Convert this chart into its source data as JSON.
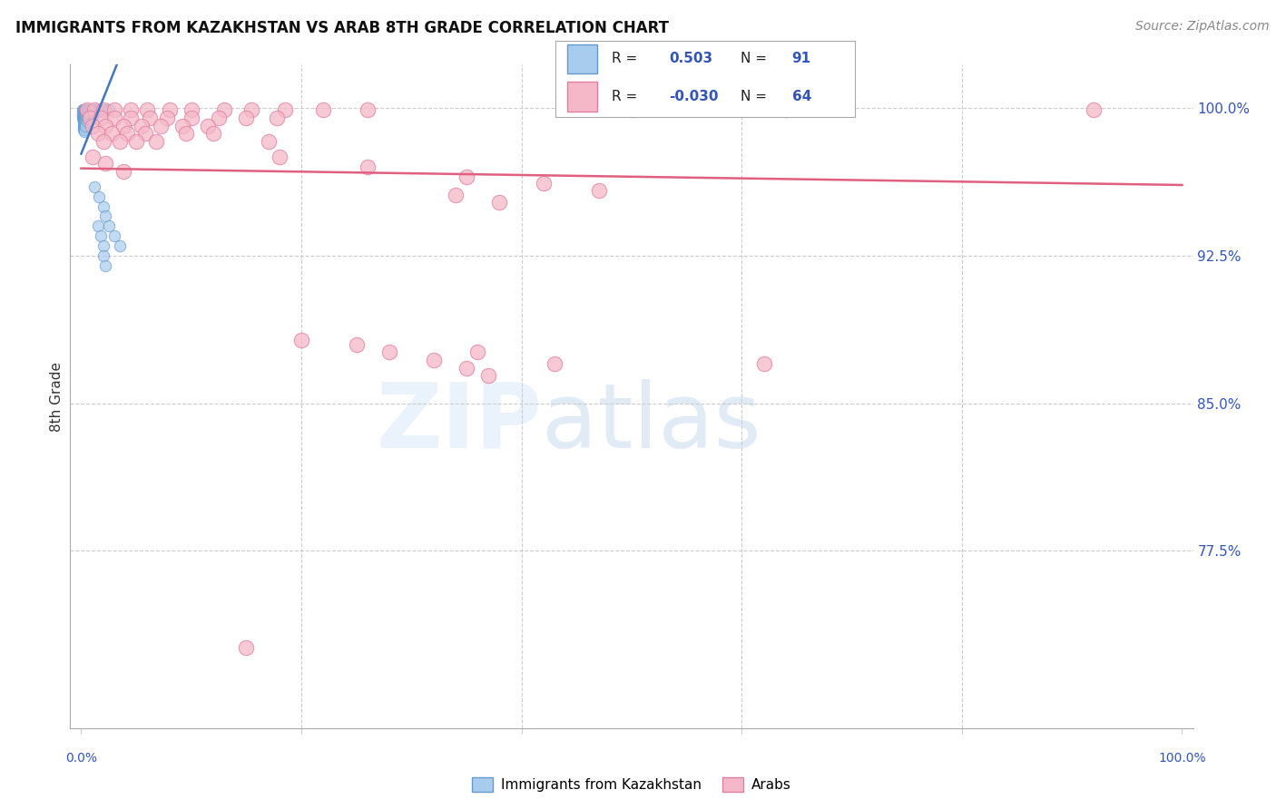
{
  "title": "IMMIGRANTS FROM KAZAKHSTAN VS ARAB 8TH GRADE CORRELATION CHART",
  "source": "Source: ZipAtlas.com",
  "ylabel": "8th Grade",
  "y_tick_labels": [
    "100.0%",
    "92.5%",
    "85.0%",
    "77.5%"
  ],
  "y_tick_values": [
    1.0,
    0.925,
    0.85,
    0.775
  ],
  "y_min": 0.685,
  "y_max": 1.022,
  "x_min": -0.01,
  "x_max": 1.01,
  "r_kaz": 0.503,
  "n_kaz": 91,
  "r_arab": -0.03,
  "n_arab": 64,
  "blue_face": "#A8CCED",
  "blue_edge": "#6699CC",
  "pink_face": "#F5B8C8",
  "pink_edge": "#E080A0",
  "trendline_pink": "#E06080",
  "trendline_blue": "#4477BB",
  "grid_color": "#CCCCCC",
  "tick_color": "#3355BB",
  "blue_scatter_x": [
    0.001,
    0.001,
    0.001,
    0.001,
    0.001,
    0.002,
    0.002,
    0.002,
    0.002,
    0.002,
    0.002,
    0.002,
    0.002,
    0.002,
    0.002,
    0.002,
    0.003,
    0.003,
    0.003,
    0.003,
    0.003,
    0.003,
    0.003,
    0.003,
    0.003,
    0.003,
    0.003,
    0.003,
    0.004,
    0.004,
    0.004,
    0.004,
    0.004,
    0.004,
    0.004,
    0.004,
    0.004,
    0.005,
    0.005,
    0.005,
    0.005,
    0.005,
    0.005,
    0.005,
    0.006,
    0.006,
    0.006,
    0.006,
    0.006,
    0.007,
    0.007,
    0.007,
    0.007,
    0.007,
    0.008,
    0.008,
    0.008,
    0.008,
    0.009,
    0.009,
    0.009,
    0.01,
    0.01,
    0.01,
    0.011,
    0.011,
    0.011,
    0.012,
    0.012,
    0.012,
    0.013,
    0.013,
    0.014,
    0.015,
    0.016,
    0.018,
    0.02,
    0.022,
    0.025,
    0.015,
    0.018,
    0.02,
    0.012,
    0.016,
    0.02,
    0.022,
    0.025,
    0.03,
    0.035,
    0.02,
    0.022
  ],
  "blue_scatter_y": [
    0.999,
    0.998,
    0.997,
    0.996,
    0.995,
    0.999,
    0.998,
    0.997,
    0.996,
    0.995,
    0.994,
    0.993,
    0.992,
    0.991,
    0.99,
    0.989,
    0.999,
    0.998,
    0.997,
    0.996,
    0.995,
    0.994,
    0.993,
    0.992,
    0.991,
    0.99,
    0.989,
    0.988,
    0.999,
    0.998,
    0.997,
    0.996,
    0.995,
    0.994,
    0.993,
    0.992,
    0.991,
    0.999,
    0.998,
    0.997,
    0.996,
    0.995,
    0.994,
    0.993,
    0.999,
    0.998,
    0.997,
    0.996,
    0.995,
    0.999,
    0.998,
    0.997,
    0.996,
    0.995,
    0.999,
    0.998,
    0.997,
    0.996,
    0.999,
    0.998,
    0.997,
    0.999,
    0.998,
    0.997,
    0.999,
    0.998,
    0.997,
    0.999,
    0.998,
    0.997,
    0.999,
    0.998,
    0.999,
    0.999,
    0.999,
    0.999,
    0.999,
    0.999,
    0.999,
    0.94,
    0.935,
    0.93,
    0.96,
    0.955,
    0.95,
    0.945,
    0.94,
    0.935,
    0.93,
    0.925,
    0.92
  ],
  "pink_scatter_x": [
    0.005,
    0.012,
    0.02,
    0.03,
    0.045,
    0.06,
    0.08,
    0.1,
    0.13,
    0.155,
    0.185,
    0.22,
    0.26,
    0.008,
    0.018,
    0.03,
    0.045,
    0.062,
    0.078,
    0.1,
    0.125,
    0.15,
    0.178,
    0.01,
    0.022,
    0.038,
    0.055,
    0.072,
    0.092,
    0.115,
    0.015,
    0.028,
    0.042,
    0.058,
    0.095,
    0.12,
    0.02,
    0.035,
    0.05,
    0.068,
    0.17,
    0.01,
    0.022,
    0.038,
    0.18,
    0.26,
    0.35,
    0.42,
    0.47,
    0.5,
    0.64,
    0.92,
    0.38,
    0.34,
    0.2,
    0.28,
    0.32,
    0.35,
    0.37,
    0.62,
    0.15,
    0.25,
    0.36,
    0.43
  ],
  "pink_scatter_y": [
    0.999,
    0.999,
    0.999,
    0.999,
    0.999,
    0.999,
    0.999,
    0.999,
    0.999,
    0.999,
    0.999,
    0.999,
    0.999,
    0.995,
    0.995,
    0.995,
    0.995,
    0.995,
    0.995,
    0.995,
    0.995,
    0.995,
    0.995,
    0.991,
    0.991,
    0.991,
    0.991,
    0.991,
    0.991,
    0.991,
    0.987,
    0.987,
    0.987,
    0.987,
    0.987,
    0.987,
    0.983,
    0.983,
    0.983,
    0.983,
    0.983,
    0.975,
    0.972,
    0.968,
    0.975,
    0.97,
    0.965,
    0.962,
    0.958,
    0.999,
    0.999,
    0.999,
    0.952,
    0.956,
    0.882,
    0.876,
    0.872,
    0.868,
    0.864,
    0.87,
    0.726,
    0.88,
    0.876,
    0.87
  ]
}
